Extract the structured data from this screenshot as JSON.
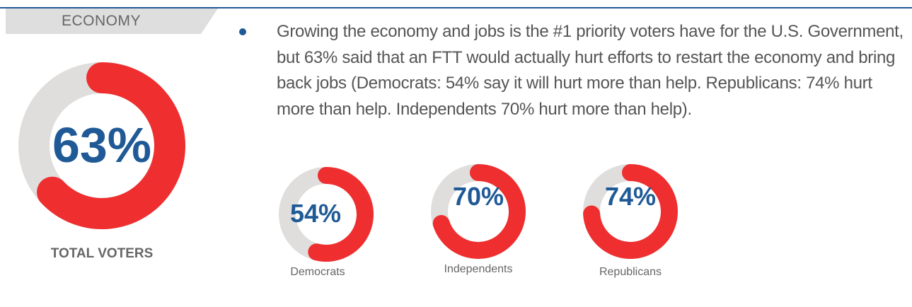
{
  "section": {
    "label": "ECONOMY"
  },
  "bullet": {
    "text": "Growing the economy and jobs is the #1 priority voters have for the U.S. Government, but 63% said that an FTT would actually hurt efforts to restart the economy and bring back jobs (Democrats: 54% say it will hurt more than help. Republicans: 74% hurt more than help. Independents 70% hurt more than help)."
  },
  "colors": {
    "accent": "#ee2e2f",
    "track": "#e0dedd",
    "value_text": "#1f5a96",
    "bullet": "#1f5a96",
    "rule": "#1f5a96"
  },
  "chart_data": [
    {
      "type": "pie",
      "variant": "donut",
      "label": "TOTAL VOTERS",
      "value": 63,
      "display": "63%"
    },
    {
      "type": "pie",
      "variant": "donut",
      "label": "Democrats",
      "value": 54,
      "display": "54%"
    },
    {
      "type": "pie",
      "variant": "donut",
      "label": "Independents",
      "value": 70,
      "display": "70%"
    },
    {
      "type": "pie",
      "variant": "donut",
      "label": "Republicans",
      "value": 74,
      "display": "74%"
    }
  ]
}
